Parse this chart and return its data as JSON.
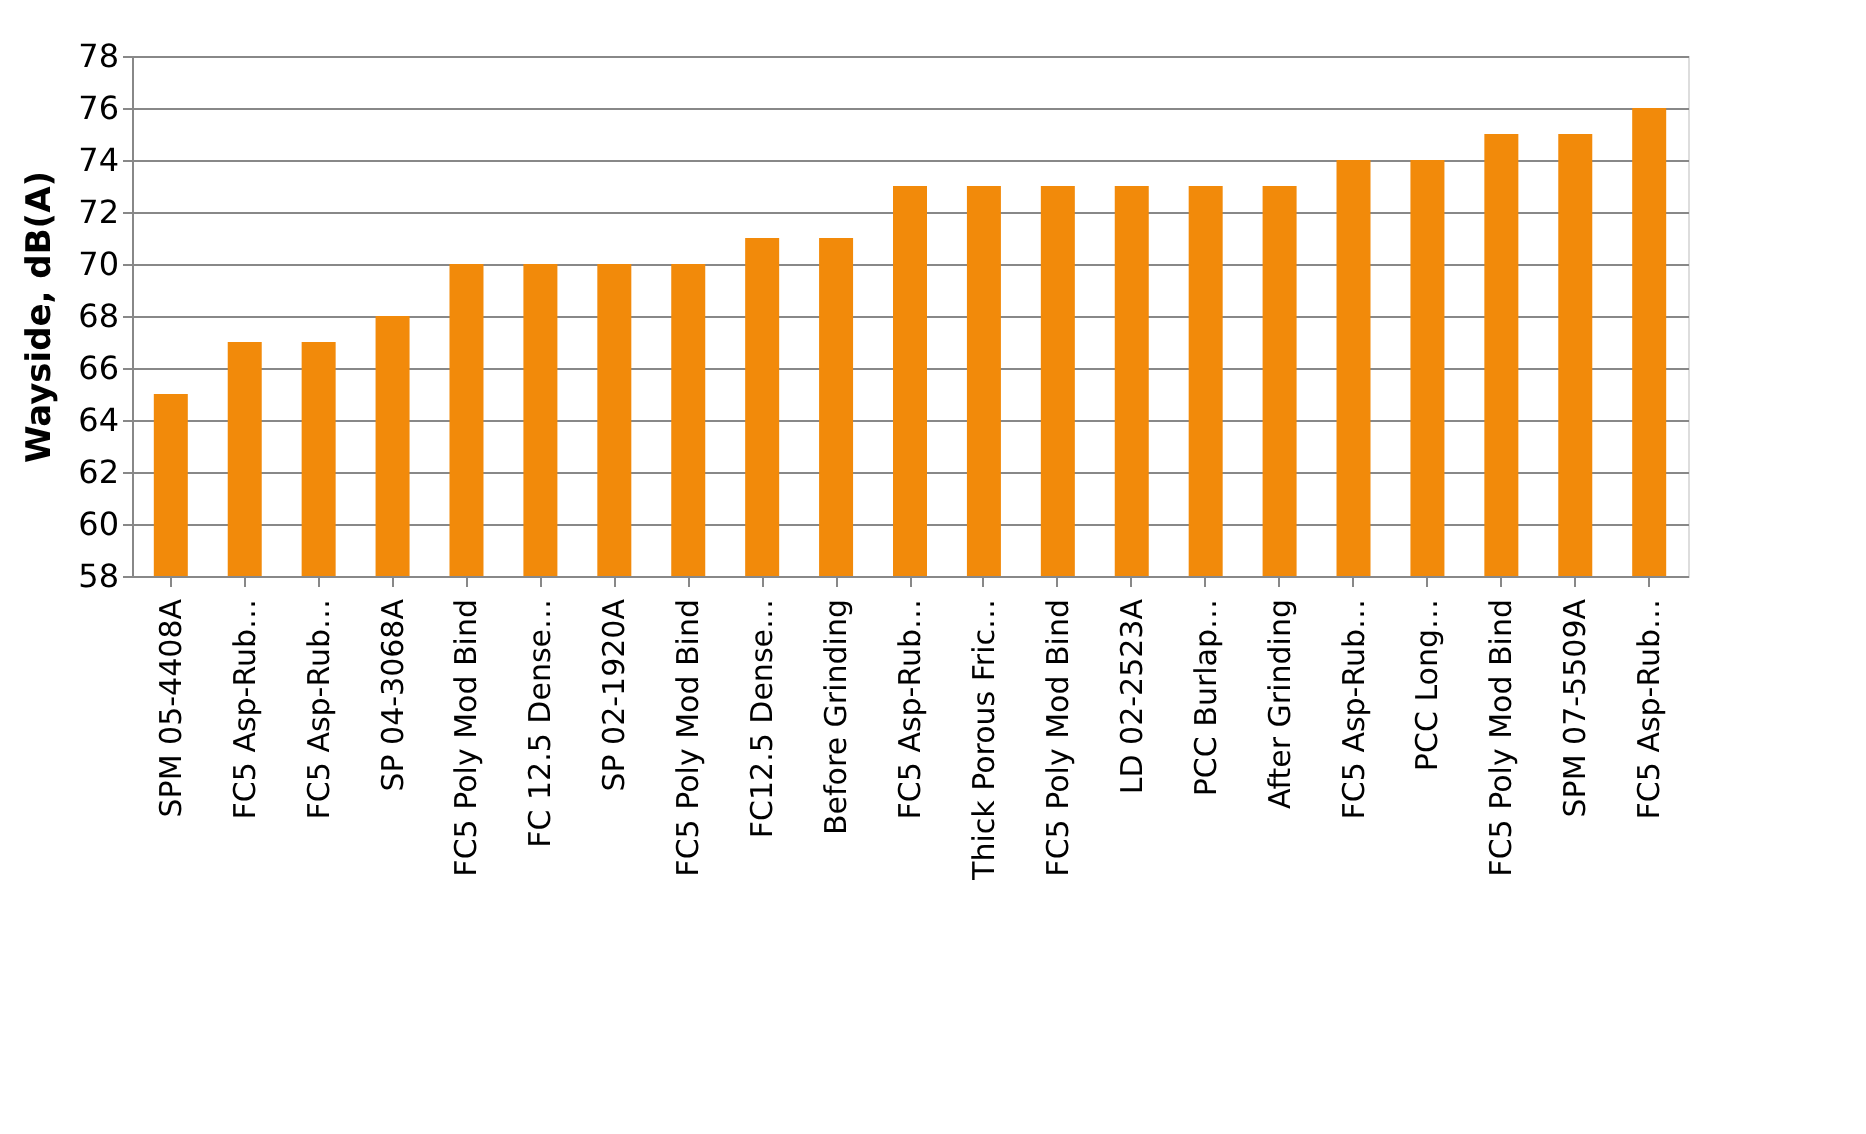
{
  "chart_data": {
    "type": "bar",
    "ylabel": "Wayside, dB(A)",
    "categories": [
      "SPM 05-4408A",
      "FC5 Asp-Rub…",
      "FC5 Asp-Rub…",
      "SP 04-3068A",
      "FC5 Poly Mod Bind",
      "FC 12.5 Dense…",
      "SP 02-1920A",
      "FC5 Poly Mod Bind",
      "FC12.5 Dense…",
      "Before Grinding",
      "FC5 Asp-Rub…",
      "Thick Porous Fric…",
      "FC5 Poly Mod Bind",
      "LD 02-2523A",
      "PCC Burlap…",
      "After Grinding",
      "FC5 Asp-Rub…",
      "PCC Long…",
      "FC5 Poly Mod Bind",
      "SPM 07-5509A",
      "FC5 Asp-Rub…"
    ],
    "values": [
      65,
      67,
      67,
      68,
      70,
      70,
      70,
      70,
      71,
      71,
      73,
      73,
      73,
      73,
      73,
      73,
      74,
      74,
      75,
      75,
      76
    ],
    "color": "#f28a0a",
    "ylim": [
      58,
      78
    ],
    "yticks": [
      58,
      60,
      62,
      64,
      66,
      68,
      70,
      72,
      74,
      76,
      78
    ],
    "grid": "y"
  }
}
